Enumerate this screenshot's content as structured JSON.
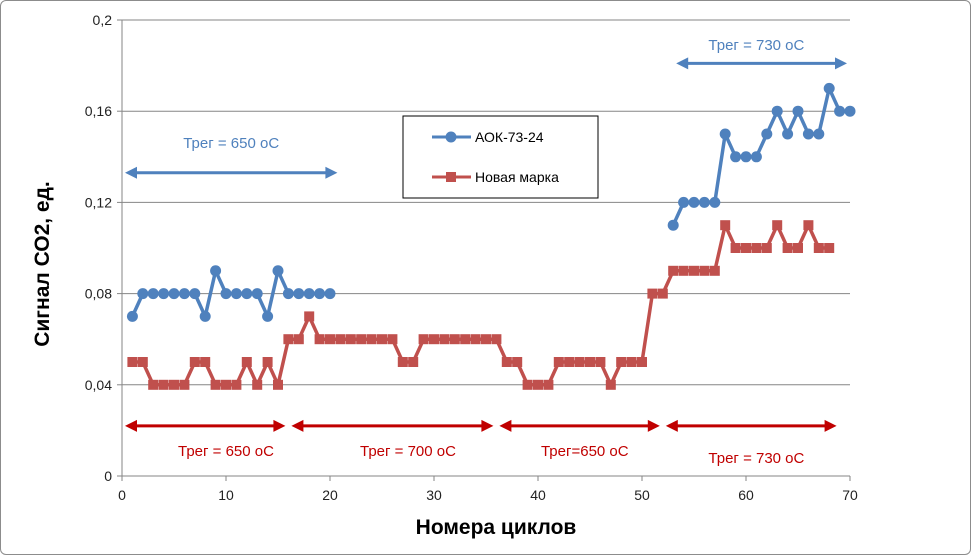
{
  "chart_data": {
    "type": "line",
    "title": "",
    "xlabel": "Номера циклов",
    "ylabel": "Сигнал СО2, ед.",
    "xlim": [
      0,
      70
    ],
    "ylim": [
      0,
      0.2
    ],
    "x_ticks": [
      "0",
      "10",
      "20",
      "30",
      "40",
      "50",
      "60",
      "70"
    ],
    "y_ticks": [
      "0",
      "0,04",
      "0,08",
      "0,12",
      "0,16",
      "0,2"
    ],
    "grid": "horizontal",
    "legend_position": "center-top",
    "series": [
      {
        "name": "АОК-73-24",
        "color": "#4f81bd",
        "marker": "circle",
        "segments": [
          {
            "x": [
              1,
              2,
              3,
              4,
              5,
              6,
              7,
              8,
              9,
              10,
              11,
              12,
              13,
              14,
              15,
              16,
              17,
              18,
              19,
              20
            ],
            "y": [
              0.07,
              0.08,
              0.08,
              0.08,
              0.08,
              0.08,
              0.08,
              0.07,
              0.09,
              0.08,
              0.08,
              0.08,
              0.08,
              0.07,
              0.09,
              0.08,
              0.08,
              0.08,
              0.08,
              0.08
            ]
          },
          {
            "x": [
              53,
              54,
              55,
              56,
              57,
              58,
              59,
              60,
              61,
              62,
              63,
              64,
              65,
              66,
              67,
              68,
              69,
              70
            ],
            "y": [
              0.11,
              0.12,
              0.12,
              0.12,
              0.12,
              0.15,
              0.14,
              0.14,
              0.14,
              0.15,
              0.16,
              0.15,
              0.16,
              0.15,
              0.15,
              0.17,
              0.16,
              0.16
            ]
          }
        ]
      },
      {
        "name": "Новая марка",
        "color": "#c0504d",
        "marker": "square",
        "segments": [
          {
            "x": [
              1,
              2,
              3,
              4,
              5,
              6,
              7,
              8,
              9,
              10,
              11,
              12,
              13,
              14,
              15,
              16,
              17,
              18,
              19,
              20,
              21,
              22,
              23,
              24,
              25,
              26,
              27,
              28,
              29,
              30,
              31,
              32,
              33,
              34,
              35,
              36,
              37,
              38,
              39,
              40,
              41,
              42,
              43,
              44,
              45,
              46,
              47,
              48,
              49,
              50,
              51,
              52,
              53,
              54,
              55,
              56,
              57,
              58,
              59,
              60,
              61,
              62,
              63,
              64,
              65,
              66,
              67,
              68
            ],
            "y": [
              0.05,
              0.05,
              0.04,
              0.04,
              0.04,
              0.04,
              0.05,
              0.05,
              0.04,
              0.04,
              0.04,
              0.05,
              0.04,
              0.05,
              0.04,
              0.06,
              0.06,
              0.07,
              0.06,
              0.06,
              0.06,
              0.06,
              0.06,
              0.06,
              0.06,
              0.06,
              0.05,
              0.05,
              0.06,
              0.06,
              0.06,
              0.06,
              0.06,
              0.06,
              0.06,
              0.06,
              0.05,
              0.05,
              0.04,
              0.04,
              0.04,
              0.05,
              0.05,
              0.05,
              0.05,
              0.05,
              0.04,
              0.05,
              0.05,
              0.05,
              0.08,
              0.08,
              0.09,
              0.09,
              0.09,
              0.09,
              0.09,
              0.11,
              0.1,
              0.1,
              0.1,
              0.1,
              0.11,
              0.1,
              0.1,
              0.11,
              0.1,
              0.1
            ]
          }
        ]
      }
    ],
    "annotations": [
      {
        "text": "Трег = 650 оС",
        "color": "#4f81bd",
        "x": 10.5,
        "y": 0.146,
        "arrow_from": 0,
        "arrow_to": 21,
        "arrow_y": 0.133
      },
      {
        "text": "Трег = 730 оС",
        "color": "#4f81bd",
        "x": 61,
        "y": 0.189,
        "arrow_from": 53,
        "arrow_to": 70,
        "arrow_y": 0.181
      },
      {
        "text": "Трег = 650 оС",
        "color": "#c00000",
        "x": 10,
        "y": 0.011,
        "arrow_from": 0,
        "arrow_to": 16,
        "arrow_y": 0.022
      },
      {
        "text": "Трег = 700 оС",
        "color": "#c00000",
        "x": 27.5,
        "y": 0.011,
        "arrow_from": 16,
        "arrow_to": 36,
        "arrow_y": 0.022
      },
      {
        "text": "Трег=650 оС",
        "color": "#c00000",
        "x": 44.5,
        "y": 0.011,
        "arrow_from": 36,
        "arrow_to": 52,
        "arrow_y": 0.022
      },
      {
        "text": "Трег = 730 оС",
        "color": "#c00000",
        "x": 61,
        "y": 0.008,
        "arrow_from": 52,
        "arrow_to": 69,
        "arrow_y": 0.022
      }
    ]
  }
}
